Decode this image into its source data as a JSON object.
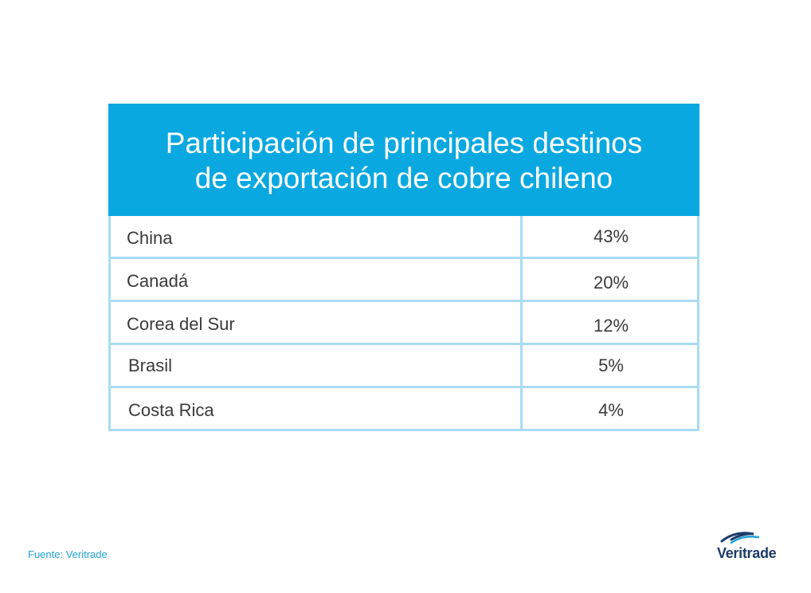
{
  "chart_data": {
    "type": "table",
    "title": "Participación de principales destinos de exportación de cobre chileno",
    "title_lines": [
      "Participación de principales destinos",
      "de exportación de cobre chileno"
    ],
    "rows": [
      {
        "country": "China",
        "share": "43%"
      },
      {
        "country": "Canadá",
        "share": "20%"
      },
      {
        "country": "Corea del Sur",
        "share": "12%"
      },
      {
        "country": "Brasil",
        "share": "5%"
      },
      {
        "country": "Costa Rica",
        "share": "4%"
      }
    ],
    "values": [
      43,
      20,
      12,
      5,
      4
    ]
  },
  "footer": {
    "source": "Fuente: Veritrade",
    "logo_text": "Veritrade"
  },
  "colors": {
    "header_bg": "#0aa8e0",
    "grid_line": "#a9dcf3",
    "source_text": "#1fa3d8",
    "logo_text": "#1c3b6a"
  }
}
